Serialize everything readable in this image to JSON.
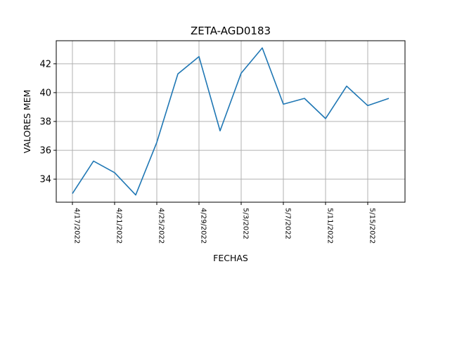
{
  "chart_data": {
    "type": "line",
    "title": "ZETA-AGD0183",
    "xlabel": "FECHAS",
    "ylabel": "VALORES MEM",
    "x": [
      "4/17/2022",
      "4/19/2022",
      "4/21/2022",
      "4/23/2022",
      "4/25/2022",
      "4/27/2022",
      "4/29/2022",
      "5/1/2022",
      "5/3/2022",
      "5/5/2022",
      "5/7/2022",
      "5/9/2022",
      "5/11/2022",
      "5/13/2022",
      "5/15/2022",
      "5/17/2022"
    ],
    "xticks": [
      "4/17/2022",
      "4/21/2022",
      "4/25/2022",
      "4/29/2022",
      "5/3/2022",
      "5/7/2022",
      "5/11/2022",
      "5/15/2022"
    ],
    "series": [
      {
        "values": [
          33.0,
          35.25,
          34.45,
          32.9,
          36.55,
          41.3,
          42.5,
          37.35,
          41.35,
          43.1,
          39.2,
          39.6,
          38.2,
          40.45,
          39.1,
          39.6
        ]
      }
    ],
    "yticks": [
      34,
      36,
      38,
      40,
      42
    ],
    "ylim": [
      32.4,
      43.6
    ],
    "grid": true,
    "color": "#1f77b4"
  }
}
